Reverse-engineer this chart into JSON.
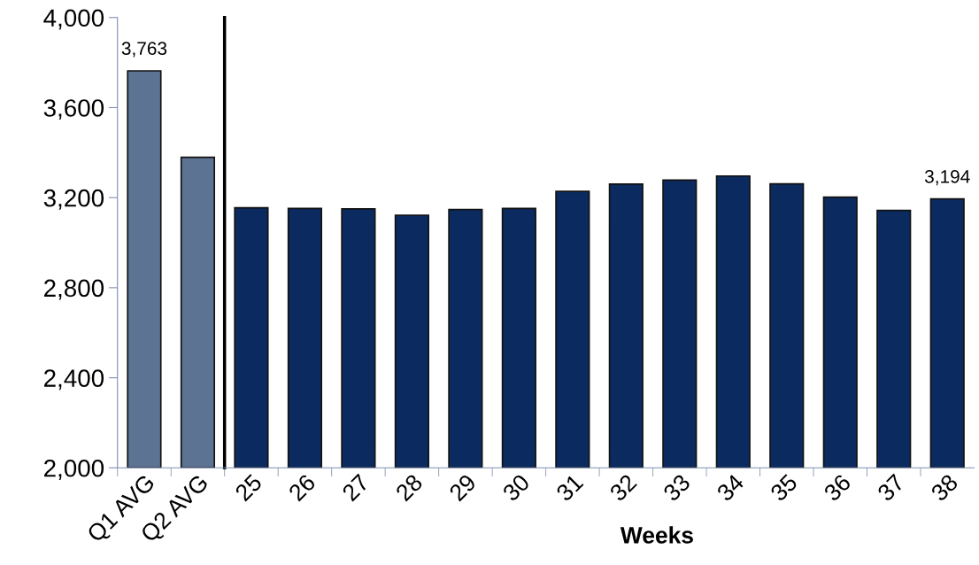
{
  "chart_data": {
    "type": "bar",
    "categories": [
      "Q1 AVG",
      "Q2 AVG",
      "25",
      "26",
      "27",
      "28",
      "29",
      "30",
      "31",
      "32",
      "33",
      "34",
      "35",
      "36",
      "37",
      "38"
    ],
    "values": [
      3763,
      3379,
      3155,
      3152,
      3150,
      3122,
      3147,
      3152,
      3228,
      3260,
      3278,
      3296,
      3261,
      3202,
      3143,
      3194
    ],
    "colors": [
      "#5d7393",
      "#5d7393",
      "#0b2b60",
      "#0b2b60",
      "#0b2b60",
      "#0b2b60",
      "#0b2b60",
      "#0b2b60",
      "#0b2b60",
      "#0b2b60",
      "#0b2b60",
      "#0b2b60",
      "#0b2b60",
      "#0b2b60",
      "#0b2b60",
      "#0b2b60"
    ],
    "value_labels": [
      "3,763",
      null,
      null,
      null,
      null,
      null,
      null,
      null,
      null,
      null,
      null,
      null,
      null,
      null,
      null,
      "3,194"
    ],
    "xlabel": "Weeks",
    "ylim": [
      2000,
      4000
    ],
    "yticks": [
      {
        "value": 2000,
        "label": "2,000"
      },
      {
        "value": 2400,
        "label": "2,400"
      },
      {
        "value": 2800,
        "label": "2,800"
      },
      {
        "value": 3200,
        "label": "3,200"
      },
      {
        "value": 3600,
        "label": "3,600"
      },
      {
        "value": 4000,
        "label": "4,000"
      }
    ],
    "grid": false,
    "legend": false
  }
}
